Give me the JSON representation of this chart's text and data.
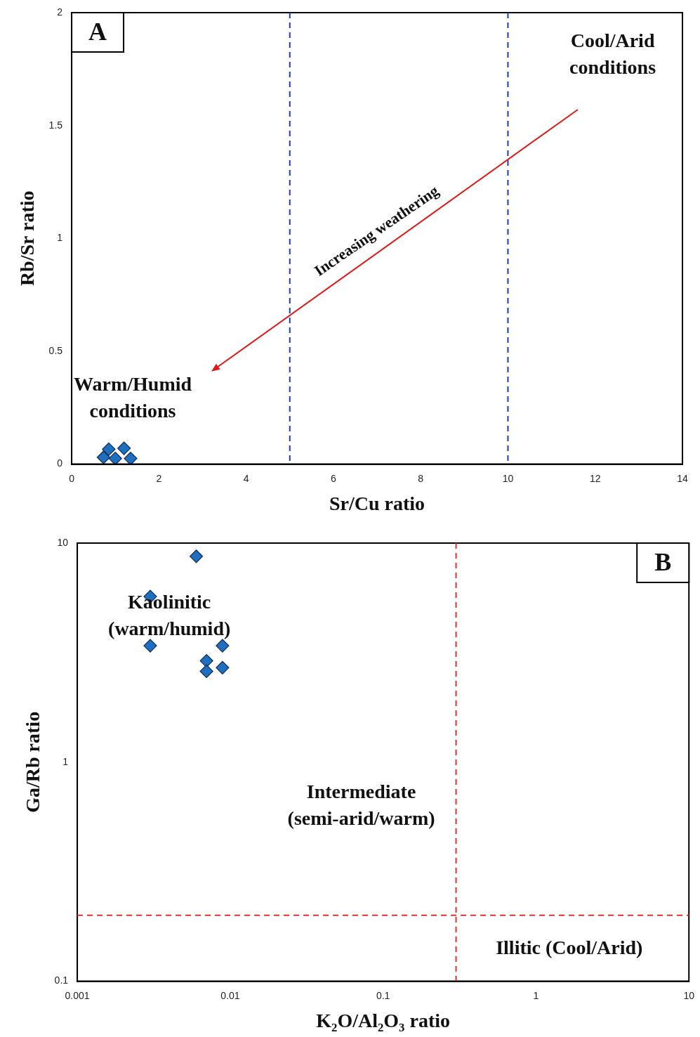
{
  "chart_data": [
    {
      "type": "scatter",
      "title": "A",
      "xlabel": "Sr/Cu ratio",
      "ylabel": "Rb/Sr ratio",
      "series": [
        {
          "color": "#1f6fc0",
          "x": [
            0.73,
            0.85,
            1.0,
            1.2,
            1.35
          ],
          "values": [
            0.03,
            0.066,
            0.025,
            0.07,
            0.025
          ]
        }
      ],
      "xlim": [
        0,
        14
      ],
      "xticks": [
        0,
        2,
        4,
        6,
        8,
        10,
        12,
        14
      ],
      "ylim": [
        0,
        2
      ],
      "yticks": [
        0,
        0.5,
        1,
        1.5,
        2
      ],
      "marker": "diamond",
      "grid": false,
      "legend": false,
      "ref_lines": [
        {
          "axis": "x",
          "value": 5,
          "color": "#1f3fa8",
          "line_style": "dashed"
        },
        {
          "axis": "x",
          "value": 10,
          "color": "#1f3fa8",
          "line_style": "dashed"
        }
      ],
      "annotations": [
        "Cool/Arid\nconditions",
        "Warm/Humid\nconditions",
        "Increasing weathering"
      ]
    },
    {
      "type": "scatter",
      "title": "B",
      "xlabel": "K₂O/Al₂O₃ ratio",
      "ylabel": "Ga/Rb ratio",
      "series": [
        {
          "color": "#1f6fc0",
          "x": [
            0.006,
            0.003,
            0.003,
            0.0089,
            0.007,
            0.0089,
            0.007
          ],
          "values": [
            8.7,
            5.7,
            3.4,
            3.4,
            2.9,
            2.7,
            2.6
          ]
        }
      ],
      "xlim": [
        0.001,
        10
      ],
      "xticks": [
        0.001,
        0.01,
        0.1,
        1,
        10
      ],
      "ylim": [
        0.1,
        10
      ],
      "yticks": [
        0.1,
        1,
        10
      ],
      "log": "xy",
      "marker": "diamond",
      "grid": false,
      "legend": false,
      "ref_lines": [
        {
          "axis": "x",
          "value": 0.3,
          "color": "#e03030",
          "line_style": "dashed"
        },
        {
          "axis": "y",
          "value": 0.2,
          "color": "#e03030",
          "line_style": "dashed"
        }
      ],
      "annotations": [
        "Kaolinitic\n(warm/humid)",
        "Intermediate\n(semi-arid/warm)",
        "Illitic (Cool/Arid)"
      ]
    }
  ]
}
